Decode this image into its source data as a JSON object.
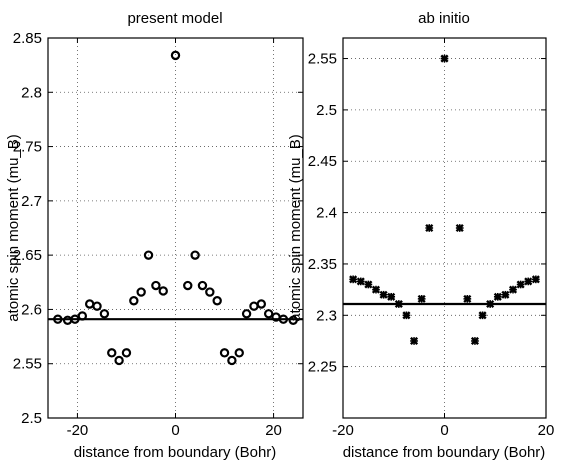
{
  "chart_data": [
    {
      "type": "scatter",
      "title": "present model",
      "xlabel": "distance from boundary (Bohr)",
      "ylabel": "atomic spin moment (mu_B)",
      "xlim": [
        -26,
        26
      ],
      "ylim": [
        2.5,
        2.85
      ],
      "xticks": [
        -20,
        0,
        20
      ],
      "yticks": [
        2.5,
        2.55,
        2.6,
        2.65,
        2.7,
        2.75,
        2.8,
        2.85
      ],
      "grid": true,
      "marker": "open-circle",
      "reference_line": 2.591,
      "points": [
        {
          "x": -24,
          "y": 2.591
        },
        {
          "x": -22,
          "y": 2.59
        },
        {
          "x": -20.5,
          "y": 2.591
        },
        {
          "x": -19,
          "y": 2.594
        },
        {
          "x": -17.5,
          "y": 2.605
        },
        {
          "x": -16,
          "y": 2.603
        },
        {
          "x": -14.5,
          "y": 2.596
        },
        {
          "x": -13,
          "y": 2.56
        },
        {
          "x": -11.5,
          "y": 2.553
        },
        {
          "x": -10,
          "y": 2.56
        },
        {
          "x": -8.5,
          "y": 2.608
        },
        {
          "x": -7,
          "y": 2.616
        },
        {
          "x": -5.5,
          "y": 2.65
        },
        {
          "x": -4,
          "y": 2.622
        },
        {
          "x": -2.5,
          "y": 2.617
        },
        {
          "x": 0,
          "y": 2.834
        },
        {
          "x": 2.5,
          "y": 2.622
        },
        {
          "x": 4,
          "y": 2.65
        },
        {
          "x": 5.5,
          "y": 2.622
        },
        {
          "x": 7,
          "y": 2.616
        },
        {
          "x": 8.5,
          "y": 2.608
        },
        {
          "x": 10,
          "y": 2.56
        },
        {
          "x": 11.5,
          "y": 2.553
        },
        {
          "x": 13,
          "y": 2.56
        },
        {
          "x": 14.5,
          "y": 2.596
        },
        {
          "x": 16,
          "y": 2.603
        },
        {
          "x": 17.5,
          "y": 2.605
        },
        {
          "x": 19,
          "y": 2.596
        },
        {
          "x": 20.5,
          "y": 2.593
        },
        {
          "x": 22,
          "y": 2.591
        },
        {
          "x": 24,
          "y": 2.59
        }
      ]
    },
    {
      "type": "scatter",
      "title": "ab initio",
      "xlabel": "distance from boundary (Bohr)",
      "ylabel": "atomic spin moment (mu_B)",
      "xlim": [
        -20,
        20
      ],
      "ylim": [
        2.2,
        2.57
      ],
      "xticks": [
        -20,
        0,
        20
      ],
      "yticks": [
        2.25,
        2.3,
        2.35,
        2.4,
        2.45,
        2.5,
        2.55
      ],
      "grid": true,
      "marker": "x-star",
      "reference_line": 2.311,
      "points": [
        {
          "x": -18,
          "y": 2.335
        },
        {
          "x": -16.5,
          "y": 2.333
        },
        {
          "x": -15,
          "y": 2.33
        },
        {
          "x": -13.5,
          "y": 2.325
        },
        {
          "x": -12,
          "y": 2.32
        },
        {
          "x": -10.5,
          "y": 2.318
        },
        {
          "x": -9,
          "y": 2.311
        },
        {
          "x": -7.5,
          "y": 2.3
        },
        {
          "x": -6,
          "y": 2.275
        },
        {
          "x": -4.5,
          "y": 2.316
        },
        {
          "x": -3,
          "y": 2.385
        },
        {
          "x": 0,
          "y": 2.55
        },
        {
          "x": 3,
          "y": 2.385
        },
        {
          "x": 4.5,
          "y": 2.316
        },
        {
          "x": 6,
          "y": 2.275
        },
        {
          "x": 7.5,
          "y": 2.3
        },
        {
          "x": 9,
          "y": 2.311
        },
        {
          "x": 10.5,
          "y": 2.318
        },
        {
          "x": 12,
          "y": 2.32
        },
        {
          "x": 13.5,
          "y": 2.325
        },
        {
          "x": 15,
          "y": 2.33
        },
        {
          "x": 16.5,
          "y": 2.333
        },
        {
          "x": 18,
          "y": 2.335
        }
      ]
    }
  ]
}
